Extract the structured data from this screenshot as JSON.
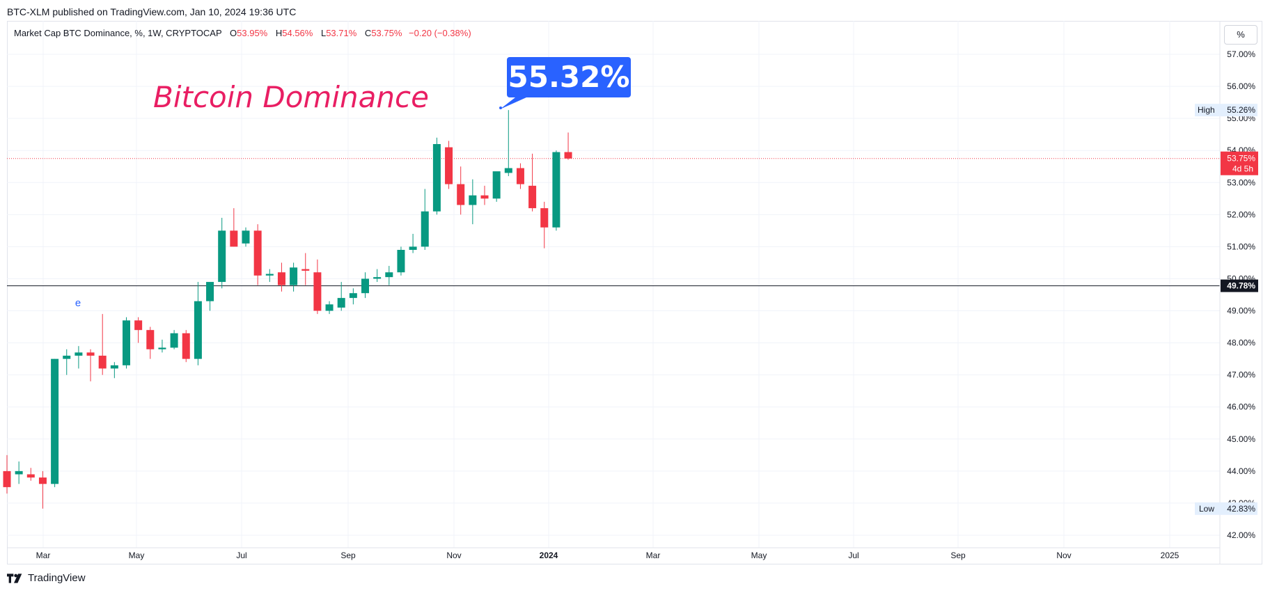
{
  "header": {
    "published_line": "BTC-XLM published on TradingView.com, Jan 10, 2024 19:36 UTC"
  },
  "legend": {
    "symbol": "Market Cap BTC Dominance, %, 1W, CRYPTOCAP",
    "open_label": "O",
    "open_value": "53.95%",
    "high_label": "H",
    "high_value": "54.56%",
    "low_label": "L",
    "low_value": "53.71%",
    "close_label": "C",
    "close_value": "53.75%",
    "change": "−0.20 (−0.38%)"
  },
  "scale_button": "%",
  "footer": {
    "brand": "TradingView"
  },
  "colors": {
    "up": "#089981",
    "down": "#f23645",
    "annotation_bg": "#2962ff",
    "title_text": "#e91e63",
    "grid": "#f0f3fa"
  },
  "chart_data": {
    "type": "candlestick",
    "title": "Bitcoin Dominance",
    "callout": "55.32%",
    "marker_label": "e",
    "yticks": [
      "57.00%",
      "56.00%",
      "55.00%",
      "54.00%",
      "53.00%",
      "52.00%",
      "51.00%",
      "50.00%",
      "49.00%",
      "48.00%",
      "47.00%",
      "46.00%",
      "45.00%",
      "44.00%",
      "43.00%",
      "42.00%"
    ],
    "ylim": [
      41.5,
      57.6
    ],
    "xticks": [
      "Mar",
      "May",
      "Jul",
      "Sep",
      "Nov",
      "2024",
      "Mar",
      "May",
      "Jul",
      "Sep",
      "Nov",
      "2025"
    ],
    "xtick_bold": "2024",
    "high_label": "High",
    "high_value": "55.26%",
    "high": 55.26,
    "low_label": "Low",
    "low_value": "42.83%",
    "low": 42.83,
    "last_price_value": "53.75%",
    "last_price": 53.75,
    "last_countdown": "4d 5h",
    "hline_value": "49.78%",
    "hline": 49.78,
    "candles": [
      [
        44.0,
        44.5,
        43.3,
        43.5
      ],
      [
        43.9,
        44.3,
        43.6,
        44.0
      ],
      [
        43.9,
        44.1,
        43.7,
        43.8
      ],
      [
        43.8,
        44.0,
        42.83,
        43.6
      ],
      [
        43.6,
        47.5,
        43.5,
        47.5
      ],
      [
        47.5,
        47.8,
        47.0,
        47.6
      ],
      [
        47.6,
        47.9,
        47.2,
        47.7
      ],
      [
        47.7,
        47.8,
        46.8,
        47.6
      ],
      [
        47.6,
        48.9,
        47.0,
        47.2
      ],
      [
        47.2,
        47.4,
        46.9,
        47.3
      ],
      [
        47.3,
        48.8,
        47.2,
        48.7
      ],
      [
        48.7,
        48.8,
        48.0,
        48.4
      ],
      [
        48.4,
        48.5,
        47.5,
        47.8
      ],
      [
        47.8,
        48.1,
        47.7,
        47.85
      ],
      [
        47.85,
        48.4,
        47.8,
        48.3
      ],
      [
        48.3,
        48.4,
        47.4,
        47.5
      ],
      [
        47.5,
        49.9,
        47.3,
        49.3
      ],
      [
        49.3,
        49.8,
        49.0,
        49.9
      ],
      [
        49.9,
        51.9,
        49.7,
        51.5
      ],
      [
        51.5,
        52.2,
        51.0,
        51.0
      ],
      [
        51.1,
        51.6,
        51.0,
        51.5
      ],
      [
        51.5,
        51.7,
        49.8,
        50.1
      ],
      [
        50.1,
        50.3,
        49.9,
        50.15
      ],
      [
        50.2,
        50.5,
        49.6,
        49.8
      ],
      [
        49.8,
        50.5,
        49.6,
        50.35
      ],
      [
        50.3,
        50.8,
        49.8,
        50.25
      ],
      [
        50.2,
        50.6,
        48.9,
        49.0
      ],
      [
        49.0,
        49.3,
        48.9,
        49.2
      ],
      [
        49.1,
        49.9,
        49.0,
        49.4
      ],
      [
        49.4,
        49.7,
        49.2,
        49.55
      ],
      [
        49.55,
        50.2,
        49.4,
        50.0
      ],
      [
        50.0,
        50.3,
        49.9,
        50.05
      ],
      [
        50.05,
        50.4,
        49.8,
        50.2
      ],
      [
        50.2,
        51.0,
        50.1,
        50.9
      ],
      [
        50.9,
        51.4,
        50.8,
        51.0
      ],
      [
        51.0,
        52.8,
        50.9,
        52.1
      ],
      [
        52.1,
        54.4,
        52.0,
        54.2
      ],
      [
        54.1,
        54.3,
        52.8,
        52.95
      ],
      [
        52.95,
        53.5,
        52.0,
        52.3
      ],
      [
        52.3,
        53.1,
        51.7,
        52.6
      ],
      [
        52.6,
        52.9,
        52.3,
        52.5
      ],
      [
        52.5,
        53.3,
        52.4,
        53.35
      ],
      [
        53.3,
        55.26,
        53.2,
        53.45
      ],
      [
        53.45,
        53.6,
        52.8,
        52.95
      ],
      [
        52.9,
        53.9,
        52.1,
        52.2
      ],
      [
        52.2,
        52.4,
        50.95,
        51.6
      ],
      [
        51.6,
        54.0,
        51.5,
        53.95
      ],
      [
        53.95,
        54.56,
        53.71,
        53.75
      ]
    ]
  }
}
